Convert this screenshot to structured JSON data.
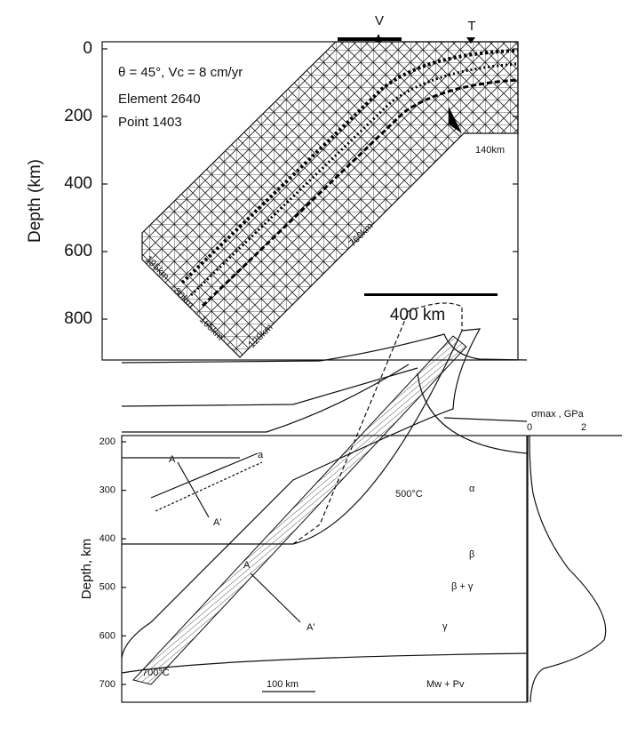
{
  "top_panel": {
    "y_axis": {
      "label": "Depth (km)",
      "ticks": [
        "0",
        "200",
        "400",
        "600",
        "800"
      ]
    },
    "markers": {
      "v": "V",
      "t": "T"
    },
    "annotation": [
      "θ = 45°, Vc = 8 cm/yr",
      "Element 2640",
      "Point 1403"
    ],
    "dimensions": [
      "140km",
      "760km",
      "195km",
      "80km",
      "165km",
      "120km"
    ],
    "scale_bar": "400 km"
  },
  "bottom_panel": {
    "y_axis": {
      "label": "Depth, km",
      "ticks": [
        "200",
        "300",
        "400",
        "500",
        "600",
        "700"
      ]
    },
    "labels": {
      "inset_a": "A",
      "inset_a_prime": "A'",
      "inset_tag": "a",
      "a": "A",
      "a_prime": "A'",
      "t500": "500°C",
      "t700": "700°C",
      "alpha": "α",
      "beta": "β",
      "beta_gamma": "β + γ",
      "gamma": "γ",
      "mw_pv": "Mw + Pv"
    },
    "scale_bar": "100 km"
  },
  "stress_panel": {
    "x_axis": {
      "label": "σmax , GPa",
      "ticks": [
        "0",
        "2"
      ]
    }
  }
}
